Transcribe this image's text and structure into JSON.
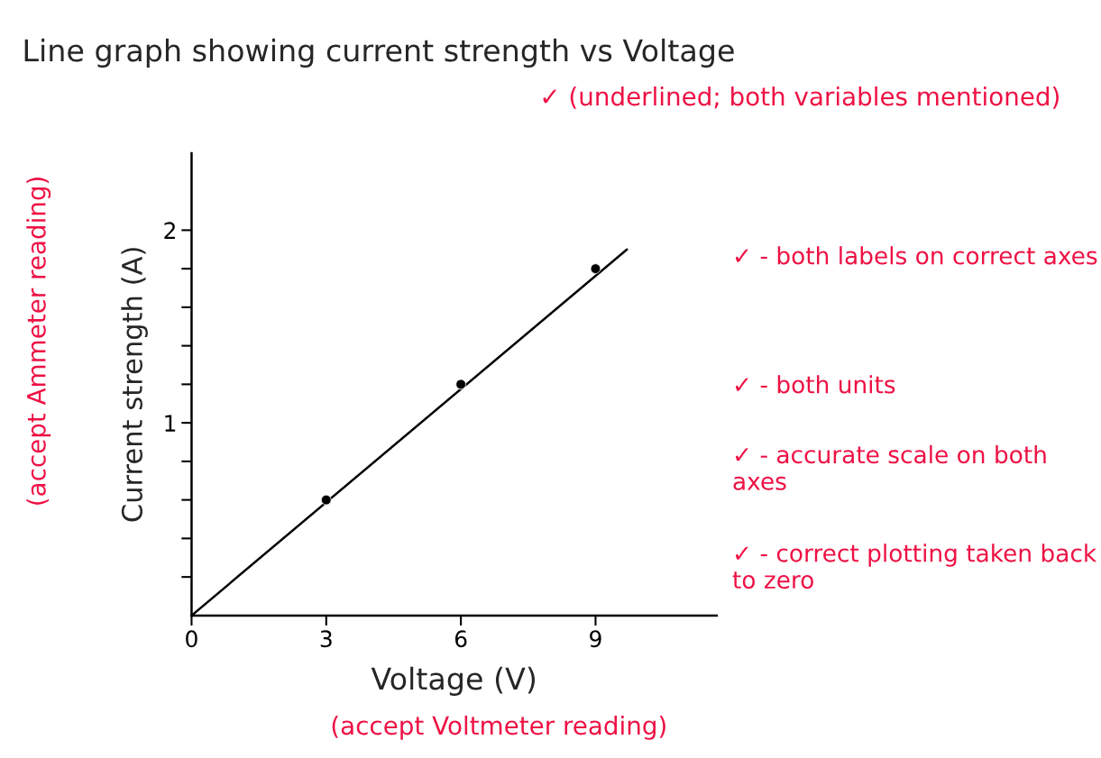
{
  "chart_data": {
    "type": "scatter",
    "title": "Line graph showing current strength vs Voltage",
    "xlabel": "Voltage (V)",
    "ylabel": "Current strength (A)",
    "xlim": [
      0,
      11.7
    ],
    "ylim": [
      0,
      2.4
    ],
    "xticks": [
      0,
      3,
      6,
      9
    ],
    "yticks": [
      {
        "value": 0.2,
        "label": null
      },
      {
        "value": 0.4,
        "label": null
      },
      {
        "value": 0.6,
        "label": null
      },
      {
        "value": 0.8,
        "label": null
      },
      1,
      {
        "value": 1.2,
        "label": null
      },
      {
        "value": 1.4,
        "label": null
      },
      {
        "value": 1.6,
        "label": null
      },
      {
        "value": 1.8,
        "label": null
      },
      2
    ],
    "grid": false,
    "marker": "circle",
    "series": [
      {
        "color": "#000000",
        "x": [
          3,
          6,
          9
        ],
        "values": [
          0.6,
          1.2,
          1.8
        ]
      },
      {
        "type": "line",
        "color": "#000000",
        "x": [
          0,
          9.7
        ],
        "values": [
          0,
          1.9
        ],
        "marker": "none",
        "line_style": "solid"
      }
    ],
    "annotations": [
      "✓ (underlined; both variables mentioned)",
      "(accept Ammeter reading)",
      "✓ - both labels on correct axes",
      "✓ - both units",
      "✓ - accurate scale on both axes",
      "✓ - correct plotting taken back to zero",
      "(accept Voltmeter reading)"
    ]
  }
}
